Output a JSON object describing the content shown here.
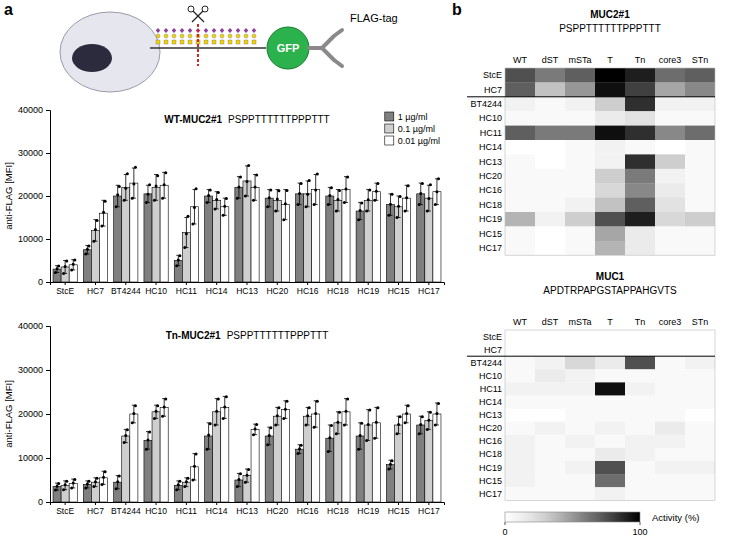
{
  "panels": [
    "a",
    "b"
  ],
  "schematic": {
    "labels": [
      "GFP",
      "FLAG-tag"
    ]
  },
  "chart_data": [
    {
      "type": "bar",
      "title": "WT-MUC2#1",
      "subtitle": "PSPPTTTTTTPPPTTT",
      "y_label": "anti-FLAG [MFI]",
      "categories": [
        "StcE",
        "HC7",
        "BT4244",
        "HC10",
        "HC11",
        "HC14",
        "HC13",
        "HC20",
        "HC16",
        "HC18",
        "HC19",
        "HC15",
        "HC17"
      ],
      "ylim": [
        0,
        40000
      ],
      "yticks": [
        0,
        10000,
        20000,
        30000,
        40000
      ],
      "legend": "top-right",
      "series": [
        {
          "name": "1 µg/ml",
          "color": "#808080",
          "values": [
            3000,
            7500,
            20000,
            20500,
            5000,
            20000,
            22000,
            19500,
            20500,
            20000,
            16500,
            18000,
            20500
          ],
          "errors": [
            800,
            1000,
            2500,
            2000,
            1200,
            1500,
            2500,
            2000,
            2500,
            2000,
            2000,
            2500,
            2500
          ],
          "points": [
            [
              2200,
              3100,
              3700
            ],
            [
              6500,
              7600,
              8400
            ],
            [
              17500,
              20300,
              22200
            ],
            [
              18500,
              20400,
              22600
            ],
            [
              3800,
              5100,
              6100
            ],
            [
              18500,
              20100,
              21400
            ],
            [
              19500,
              22100,
              24400
            ],
            [
              17500,
              19600,
              21400
            ],
            [
              18000,
              20600,
              22900
            ],
            [
              18000,
              20100,
              21900
            ],
            [
              14500,
              16600,
              18400
            ],
            [
              15500,
              18100,
              20400
            ],
            [
              18000,
              20600,
              22900
            ]
          ]
        },
        {
          "name": "0.1 µg/ml",
          "color": "#cfcfcf",
          "values": [
            3500,
            12000,
            22000,
            22000,
            11500,
            19000,
            23500,
            19000,
            20500,
            19000,
            19000,
            17500,
            19500
          ],
          "errors": [
            1500,
            2500,
            3000,
            3000,
            3500,
            2000,
            3500,
            2500,
            3000,
            2500,
            2500,
            2500,
            3000
          ],
          "points": [
            [
              2000,
              3600,
              4900
            ],
            [
              9500,
              12200,
              14300
            ],
            [
              19000,
              21800,
              25200
            ],
            [
              19000,
              22300,
              24700
            ],
            [
              8000,
              11200,
              15300
            ],
            [
              17000,
              19200,
              20800
            ],
            [
              20000,
              23400,
              27100
            ],
            [
              16500,
              19300,
              21200
            ],
            [
              17500,
              20400,
              23600
            ],
            [
              16500,
              19200,
              21300
            ],
            [
              16500,
              19100,
              21400
            ],
            [
              15000,
              17600,
              19900
            ],
            [
              16500,
              19400,
              22600
            ]
          ]
        },
        {
          "name": "0.01 µg/ml",
          "color": "#ffffff",
          "values": [
            4000,
            16000,
            23000,
            22500,
            17500,
            17500,
            22000,
            18000,
            21500,
            21500,
            21000,
            19500,
            21000
          ],
          "errors": [
            1200,
            3000,
            3500,
            3000,
            4000,
            2000,
            3000,
            3500,
            3500,
            3000,
            2000,
            3000,
            3000
          ],
          "points": [
            [
              2800,
              4100,
              5100
            ],
            [
              13000,
              16200,
              18800
            ],
            [
              19500,
              22800,
              26700
            ],
            [
              19500,
              22600,
              25400
            ],
            [
              13500,
              17300,
              21700
            ],
            [
              15500,
              17600,
              19400
            ],
            [
              19000,
              22100,
              24900
            ],
            [
              14500,
              18200,
              21300
            ],
            [
              18000,
              21400,
              25100
            ],
            [
              18500,
              21600,
              24400
            ],
            [
              19000,
              21100,
              22900
            ],
            [
              16500,
              19600,
              22400
            ],
            [
              18000,
              21000,
              24000
            ]
          ]
        }
      ]
    },
    {
      "type": "bar",
      "title": "Tn-MUC2#1",
      "subtitle": "PSPPTTTTTTPPPTTT",
      "y_label": "anti-FLAG [MFI]",
      "categories": [
        "StcE",
        "HC7",
        "BT4244",
        "HC10",
        "HC11",
        "HC14",
        "HC13",
        "HC20",
        "HC16",
        "HC18",
        "HC19",
        "HC15",
        "HC17"
      ],
      "ylim": [
        0,
        40000
      ],
      "yticks": [
        0,
        10000,
        20000,
        30000,
        40000
      ],
      "series": [
        {
          "color": "#808080",
          "values": [
            3500,
            4000,
            4500,
            14000,
            3800,
            15000,
            5000,
            15000,
            12000,
            14500,
            15000,
            8500,
            17500
          ],
          "errors": [
            800,
            800,
            1500,
            2000,
            1000,
            3000,
            1500,
            2000,
            1000,
            3000,
            3000,
            1000,
            2000
          ],
          "points": [
            [
              2700,
              3600,
              4200
            ],
            [
              3200,
              4100,
              4700
            ],
            [
              3000,
              4600,
              5900
            ],
            [
              12000,
              14100,
              15900
            ],
            [
              2800,
              3900,
              4700
            ],
            [
              12000,
              15200,
              17800
            ],
            [
              3500,
              5100,
              6400
            ],
            [
              13000,
              15100,
              16900
            ],
            [
              11000,
              12100,
              12900
            ],
            [
              11500,
              14600,
              17400
            ],
            [
              12000,
              15100,
              17900
            ],
            [
              7500,
              8600,
              9400
            ],
            [
              15500,
              17600,
              19400
            ]
          ]
        },
        {
          "color": "#cfcfcf",
          "values": [
            3800,
            4500,
            15000,
            20500,
            4500,
            20500,
            6000,
            19500,
            19500,
            18000,
            17500,
            17500,
            18500
          ],
          "errors": [
            1000,
            1000,
            1500,
            1500,
            1000,
            3000,
            1500,
            2000,
            2000,
            2500,
            3500,
            2000,
            2000
          ],
          "points": [
            [
              2800,
              3900,
              4700
            ],
            [
              3500,
              4600,
              5400
            ],
            [
              13500,
              15100,
              16400
            ],
            [
              19000,
              20600,
              21900
            ],
            [
              3500,
              4600,
              5400
            ],
            [
              17500,
              20600,
              23400
            ],
            [
              4500,
              6100,
              7400
            ],
            [
              17500,
              19600,
              21400
            ],
            [
              17500,
              19600,
              21400
            ],
            [
              15500,
              18100,
              20400
            ],
            [
              14000,
              17600,
              20900
            ],
            [
              15500,
              17600,
              19400
            ],
            [
              16500,
              18600,
              20400
            ]
          ]
        },
        {
          "color": "#ffffff",
          "values": [
            4200,
            5500,
            20000,
            21500,
            8000,
            21500,
            16500,
            21000,
            20000,
            20500,
            18000,
            20000,
            20000
          ],
          "errors": [
            1000,
            1500,
            2000,
            2000,
            3000,
            2500,
            1200,
            2000,
            3000,
            3000,
            3500,
            2000,
            2500
          ],
          "points": [
            [
              3200,
              4300,
              5100
            ],
            [
              4000,
              5600,
              6900
            ],
            [
              18000,
              20100,
              21900
            ],
            [
              19500,
              21600,
              23400
            ],
            [
              5000,
              8100,
              10900
            ],
            [
              19000,
              21600,
              23900
            ],
            [
              15300,
              16600,
              17600
            ],
            [
              19000,
              21100,
              22900
            ],
            [
              17000,
              20100,
              22900
            ],
            [
              17500,
              20600,
              23400
            ],
            [
              14500,
              18100,
              21400
            ],
            [
              18000,
              20100,
              21900
            ],
            [
              17500,
              20100,
              22400
            ]
          ]
        }
      ]
    },
    {
      "type": "heatmap",
      "title": "MUC2#1",
      "subtitle": "PSPPTTTTTTPPPTTT",
      "x": [
        "WT",
        "dST",
        "mSTa",
        "T",
        "Tn",
        "core3",
        "STn"
      ],
      "y": [
        "StcE",
        "HC7",
        "BT4244",
        "HC10",
        "HC11",
        "HC14",
        "HC13",
        "HC20",
        "HC16",
        "HC18",
        "HC19",
        "HC15",
        "HC17"
      ],
      "color_range": [
        0,
        100
      ],
      "values": [
        [
          75,
          60,
          70,
          100,
          90,
          65,
          70
        ],
        [
          70,
          35,
          50,
          95,
          80,
          45,
          55
        ],
        [
          10,
          5,
          10,
          30,
          85,
          10,
          10
        ],
        [
          5,
          5,
          5,
          15,
          20,
          5,
          5
        ],
        [
          70,
          60,
          60,
          95,
          85,
          55,
          65
        ],
        [
          0,
          0,
          5,
          10,
          5,
          0,
          5
        ],
        [
          5,
          0,
          5,
          10,
          85,
          30,
          5
        ],
        [
          5,
          5,
          5,
          30,
          60,
          10,
          5
        ],
        [
          5,
          5,
          5,
          25,
          55,
          15,
          5
        ],
        [
          5,
          5,
          10,
          35,
          70,
          20,
          5
        ],
        [
          40,
          10,
          30,
          75,
          90,
          25,
          30
        ],
        [
          5,
          0,
          5,
          45,
          15,
          5,
          5
        ],
        [
          5,
          0,
          5,
          40,
          15,
          5,
          5
        ]
      ]
    },
    {
      "type": "heatmap",
      "title": "MUC1",
      "subtitle": "APDTRPAPGSTAPPAHGVTS",
      "x": [
        "WT",
        "dST",
        "mSTa",
        "T",
        "Tn",
        "core3",
        "STn"
      ],
      "y": [
        "StcE",
        "HC7",
        "BT4244",
        "HC10",
        "HC11",
        "HC14",
        "HC13",
        "HC20",
        "HC16",
        "HC18",
        "HC19",
        "HC15",
        "HC17"
      ],
      "colorbar": {
        "range": [
          0,
          100
        ],
        "ticks": [
          0,
          100
        ],
        "label": "Activity (%)"
      },
      "values": [
        [
          0,
          0,
          0,
          0,
          0,
          0,
          0
        ],
        [
          0,
          0,
          0,
          0,
          0,
          0,
          0
        ],
        [
          5,
          10,
          25,
          15,
          75,
          5,
          10
        ],
        [
          5,
          15,
          10,
          5,
          5,
          5,
          5
        ],
        [
          10,
          10,
          10,
          95,
          10,
          5,
          5
        ],
        [
          5,
          5,
          5,
          5,
          5,
          5,
          5
        ],
        [
          0,
          0,
          5,
          5,
          5,
          5,
          0
        ],
        [
          5,
          10,
          5,
          10,
          5,
          15,
          5
        ],
        [
          10,
          5,
          10,
          5,
          10,
          10,
          5
        ],
        [
          10,
          5,
          5,
          15,
          10,
          5,
          5
        ],
        [
          10,
          5,
          10,
          75,
          5,
          10,
          10
        ],
        [
          10,
          5,
          5,
          65,
          5,
          5,
          5
        ],
        [
          5,
          5,
          5,
          10,
          5,
          5,
          5
        ]
      ]
    }
  ]
}
